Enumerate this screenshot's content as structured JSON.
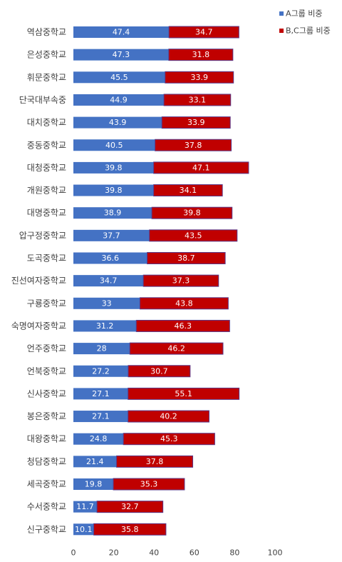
{
  "chart_data": {
    "type": "bar",
    "orientation": "horizontal",
    "stacked": true,
    "categories": [
      "역삼중학교",
      "은성중학교",
      "휘문중학교",
      "단국대부속중",
      "대치중학교",
      "중동중학교",
      "대청중학교",
      "개원중학교",
      "대명중학교",
      "압구정중학교",
      "도곡중학교",
      "진선여자중학교",
      "구룡중학교",
      "숙명여자중학교",
      "언주중학교",
      "언북중학교",
      "신사중학교",
      "봉은중학교",
      "대왕중학교",
      "청담중학교",
      "세곡중학교",
      "수서중학교",
      "신구중학교"
    ],
    "series": [
      {
        "name": "A그룹 비중",
        "color": "#4472C4",
        "values": [
          47.4,
          47.3,
          45.5,
          44.9,
          43.9,
          40.5,
          39.8,
          39.8,
          38.9,
          37.7,
          36.6,
          34.7,
          33,
          31.2,
          28,
          27.2,
          27.1,
          27.1,
          24.8,
          21.4,
          19.8,
          11.7,
          10.1
        ]
      },
      {
        "name": "B,C그룹 비중",
        "color": "#C00000",
        "values": [
          34.7,
          31.8,
          33.9,
          33.1,
          33.9,
          37.8,
          47.1,
          34.1,
          39.8,
          43.5,
          38.7,
          37.3,
          43.8,
          46.3,
          46.2,
          30.7,
          55.1,
          40.2,
          45.3,
          37.8,
          35.3,
          32.7,
          35.8
        ]
      }
    ],
    "xlim": [
      0,
      100
    ],
    "xticks": [
      0,
      20,
      40,
      60,
      80,
      100
    ],
    "legend": "top-right",
    "grid": false
  }
}
